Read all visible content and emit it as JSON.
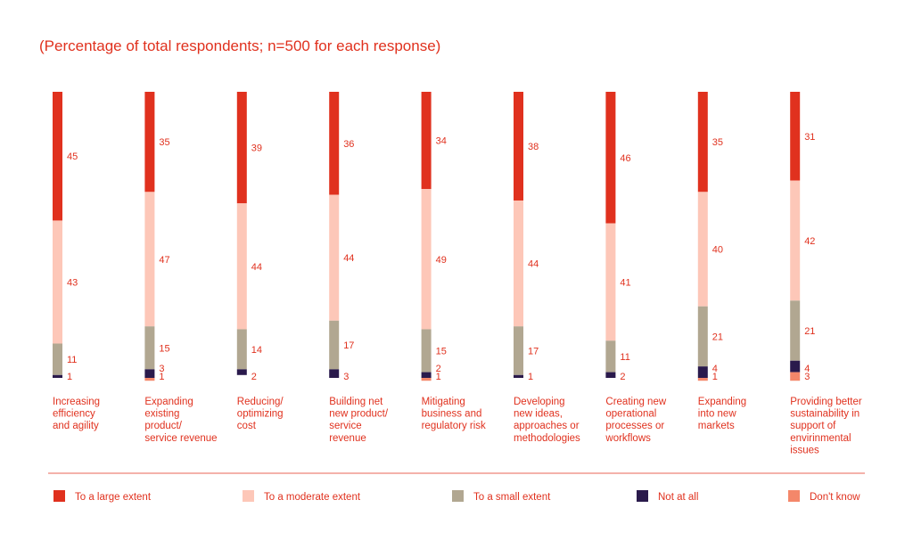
{
  "chart_data": {
    "type": "bar",
    "stacked": true,
    "orientation": "vertical",
    "subtitle": "(Percentage of total respondents; n=500 for each response)",
    "categories": [
      [
        "Increasing",
        "efficiency",
        "and agility"
      ],
      [
        "Expanding",
        "existing",
        "product/",
        "service revenue"
      ],
      [
        "Reducing/",
        "optimizing",
        "cost"
      ],
      [
        "Building net",
        "new product/",
        "service",
        "revenue"
      ],
      [
        "Mitigating",
        "business and",
        "regulatory risk"
      ],
      [
        "Developing",
        "new ideas,",
        "approaches or",
        "methodologies"
      ],
      [
        "Creating new",
        "operational",
        "processes or",
        "workflows"
      ],
      [
        "Expanding",
        "into new",
        "markets"
      ],
      [
        "Providing better",
        "sustainability in",
        "support of",
        "envirinmental",
        "issues"
      ]
    ],
    "series": [
      {
        "name": "To a large extent",
        "color": "#e0311e",
        "values": [
          45,
          35,
          39,
          36,
          34,
          38,
          46,
          35,
          31
        ]
      },
      {
        "name": "To a moderate extent",
        "color": "#fdc7b8",
        "values": [
          43,
          47,
          44,
          44,
          49,
          44,
          41,
          40,
          42
        ]
      },
      {
        "name": "To a small extent",
        "color": "#b1a791",
        "values": [
          11,
          15,
          14,
          17,
          15,
          17,
          11,
          21,
          21
        ]
      },
      {
        "name": "Not at all",
        "color": "#2a1a4c",
        "values": [
          1,
          3,
          2,
          3,
          2,
          1,
          2,
          4,
          4
        ]
      },
      {
        "name": "Don't know",
        "color": "#f4876a",
        "values": [
          0,
          1,
          0,
          0,
          1,
          0,
          0,
          1,
          3
        ]
      }
    ],
    "legend_position": "bottom",
    "grid": false,
    "ylim": [
      0,
      100
    ],
    "accent_color": "#e0311e"
  }
}
